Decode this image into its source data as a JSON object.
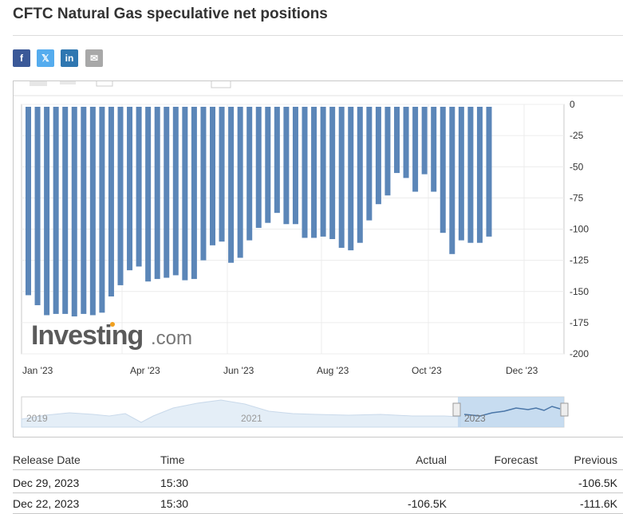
{
  "page": {
    "title": "CFTC Natural Gas speculative net positions"
  },
  "share": [
    {
      "name": "facebook",
      "glyph": "f",
      "color": "#3b5998"
    },
    {
      "name": "x",
      "glyph": "𝕏",
      "color": "#55acee"
    },
    {
      "name": "linkedin",
      "glyph": "in",
      "color": "#2f77b1"
    },
    {
      "name": "email",
      "glyph": "✉",
      "color": "#a8a8a8"
    }
  ],
  "chart_data": {
    "type": "bar",
    "y_ticks": [
      0,
      -25,
      -50,
      -75,
      -100,
      -125,
      -150,
      -175,
      -200
    ],
    "ylim": [
      -200,
      0
    ],
    "x_tick_labels": [
      "Jan '23",
      "Apr '23",
      "Jun '23",
      "Aug '23",
      "Oct '23",
      "Dec '23"
    ],
    "values": [
      -153,
      -161,
      -169,
      -168,
      -168,
      -170,
      -168,
      -169,
      -167,
      -154,
      -145,
      -133,
      -130,
      -142,
      -140,
      -139,
      -137,
      -141,
      -140,
      -125,
      -113,
      -110,
      -127,
      -123,
      -109,
      -99,
      -95,
      -87,
      -96,
      -96,
      -107,
      -107,
      -106,
      -108,
      -115,
      -117,
      -111,
      -93,
      -80,
      -73,
      -55,
      -59,
      -70,
      -56,
      -70,
      -103,
      -120,
      -109,
      -111,
      -111,
      -106
    ],
    "grid": true,
    "brand": "Investing.com",
    "navigator": {
      "labels": [
        "2019",
        "2021",
        "2023"
      ]
    }
  },
  "table": {
    "headers": {
      "release_date": "Release Date",
      "time": "Time",
      "actual": "Actual",
      "forecast": "Forecast",
      "previous": "Previous"
    },
    "rows": [
      {
        "release_date": "Dec 29, 2023",
        "time": "15:30",
        "actual": "",
        "forecast": "",
        "previous": "-106.5K"
      },
      {
        "release_date": "Dec 22, 2023",
        "time": "15:30",
        "actual": "-106.5K",
        "forecast": "",
        "previous": "-111.6K"
      }
    ]
  }
}
